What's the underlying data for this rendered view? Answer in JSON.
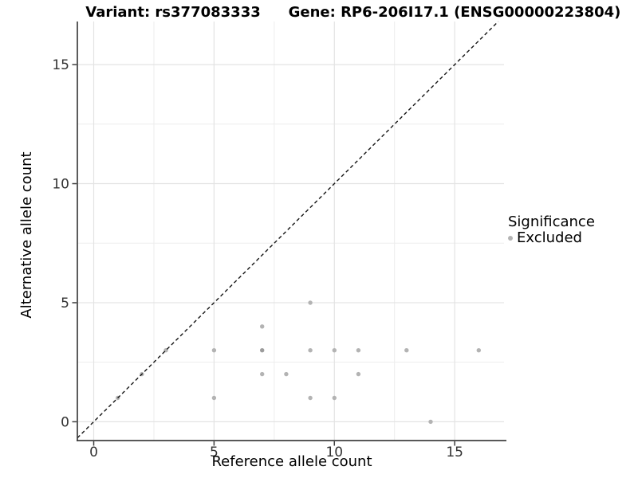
{
  "titles": {
    "variant": "Variant: rs377083333",
    "gene": "Gene: RP6-206I17.1 (ENSG00000223804)"
  },
  "axes": {
    "x_label": "Reference allele count",
    "y_label": "Alternative allele count",
    "x_tick_labels": [
      "0",
      "5",
      "10",
      "15"
    ],
    "y_tick_labels": [
      "0",
      "5",
      "10",
      "15"
    ]
  },
  "legend": {
    "title": "Significance",
    "items": [
      {
        "label": "Excluded",
        "color": "#b3b3b3"
      }
    ]
  },
  "colors": {
    "point": "#b3b3b3",
    "point_overplotted": "#9c9c9c",
    "grid_major": "#e3e3e3",
    "grid_minor": "#ededed",
    "axis_line": "#404040",
    "tick_text": "#333333",
    "identity_line": "#141414",
    "background": "#ffffff"
  },
  "chart_data": {
    "type": "scatter",
    "title_left": "Variant: rs377083333",
    "title_right": "Gene: RP6-206I17.1 (ENSG00000223804)",
    "xlabel": "Reference allele count",
    "ylabel": "Alternative allele count",
    "xlim": [
      -0.68,
      17.05
    ],
    "ylim": [
      -0.79,
      16.81
    ],
    "x_ticks": [
      0,
      5,
      10,
      15
    ],
    "y_ticks": [
      0,
      5,
      10,
      15
    ],
    "x_minor_ticks": [
      2.5,
      7.5,
      12.5
    ],
    "y_minor_ticks": [
      2.5,
      7.5,
      12.5
    ],
    "grid": true,
    "legend_position": "right-middle",
    "series": [
      {
        "name": "Excluded",
        "color": "#b3b3b3",
        "points": [
          [
            1,
            1
          ],
          [
            2,
            2
          ],
          [
            3,
            3
          ],
          [
            5,
            1
          ],
          [
            5,
            3
          ],
          [
            7,
            2
          ],
          [
            7,
            3
          ],
          [
            7,
            4
          ],
          [
            8,
            2
          ],
          [
            9,
            1
          ],
          [
            9,
            3
          ],
          [
            9,
            5
          ],
          [
            10,
            1
          ],
          [
            10,
            3
          ],
          [
            11,
            2
          ],
          [
            11,
            3
          ],
          [
            13,
            3
          ],
          [
            14,
            0
          ],
          [
            16,
            3
          ]
        ]
      }
    ],
    "overplotted_points": [
      [
        7,
        3
      ]
    ],
    "identity_line": {
      "type": "abline",
      "slope": 1,
      "intercept": 0,
      "style": "dashed"
    }
  }
}
